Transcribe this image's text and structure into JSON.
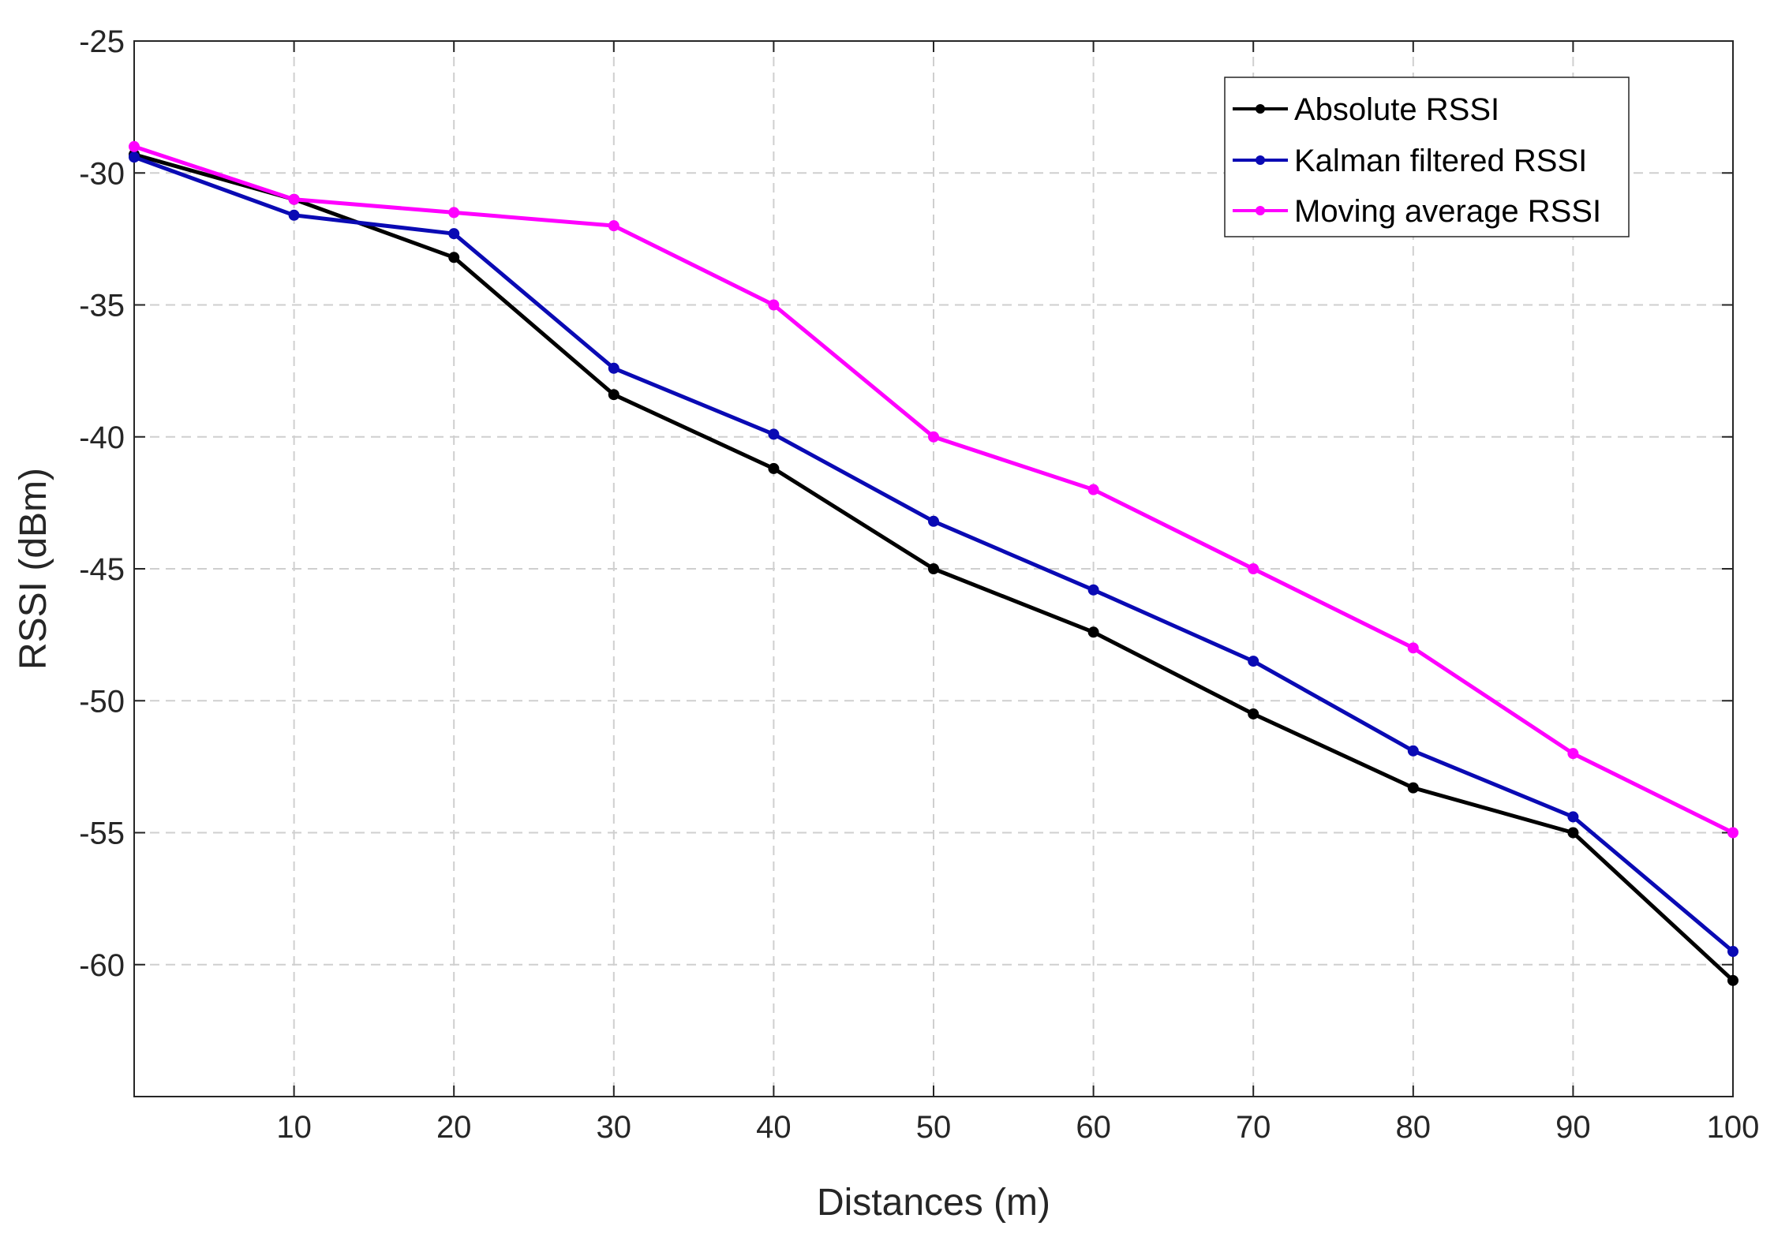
{
  "chart_data": {
    "type": "line",
    "xlabel": "Distances (m)",
    "ylabel": "RSSI (dBm)",
    "xlim": [
      0,
      100
    ],
    "ylim": [
      -65,
      -25
    ],
    "xticks": [
      10,
      20,
      30,
      40,
      50,
      60,
      70,
      80,
      90,
      100
    ],
    "yticks": [
      -25,
      -30,
      -35,
      -40,
      -45,
      -50,
      -55,
      -60
    ],
    "grid": true,
    "legend_position": "top-right",
    "x": [
      0,
      10,
      20,
      30,
      40,
      50,
      60,
      70,
      80,
      90,
      100
    ],
    "series": [
      {
        "name": "Absolute RSSI",
        "color": "#000000",
        "values": [
          -29.3,
          -31.0,
          -33.2,
          -38.4,
          -41.2,
          -45.0,
          -47.4,
          -50.5,
          -53.3,
          -55.0,
          -60.6
        ]
      },
      {
        "name": "Kalman filtered RSSI",
        "color": "#0a0ab4",
        "values": [
          -29.4,
          -31.6,
          -32.3,
          -37.4,
          -39.9,
          -43.2,
          -45.8,
          -48.5,
          -51.9,
          -54.4,
          -59.5
        ]
      },
      {
        "name": "Moving average RSSI",
        "color": "#ff00ff",
        "values": [
          -29.0,
          -31.0,
          -31.5,
          -32.0,
          -35.0,
          -40.0,
          -42.0,
          -45.0,
          -48.0,
          -52.0,
          -55.0
        ]
      }
    ]
  }
}
